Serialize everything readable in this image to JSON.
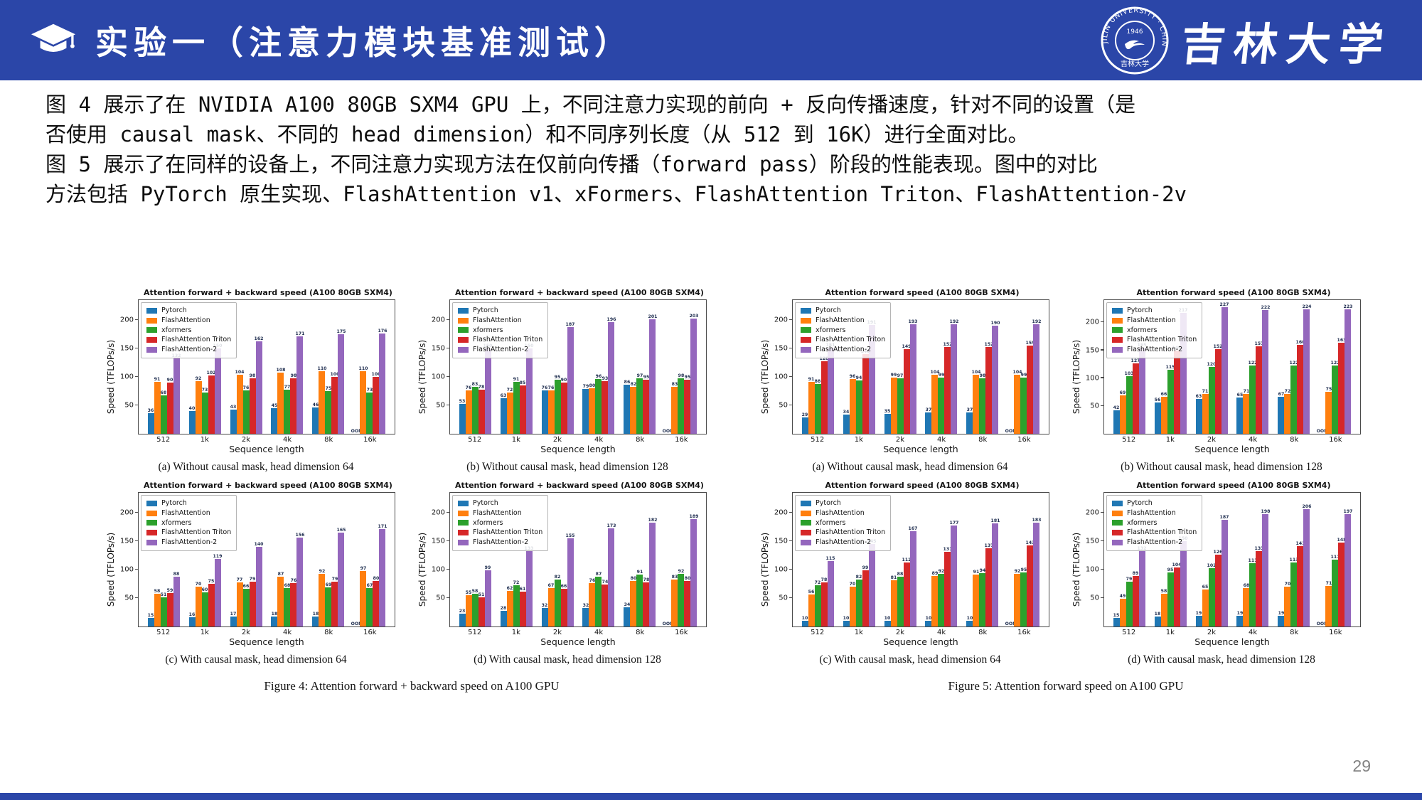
{
  "header": {
    "title": "实验一（注意力模块基准测试）",
    "seal_text": "JILIN UNIVERSITY · CHINA",
    "seal_year": "1946",
    "seal_bottom": "吉林大学",
    "logo_text": "吉林大学"
  },
  "intro": {
    "lines": [
      "图 4 展示了在 NVIDIA A100 80GB SXM4 GPU 上，不同注意力实现的前向 + 反向传播速度，针对不同的设置（是",
      "否使用 causal mask、不同的 head dimension）和不同序列长度（从 512 到 16K）进行全面对比。",
      "图 5 展示了在同样的设备上，不同注意力实现方法在仅前向传播（forward pass）阶段的性能表现。图中的对比",
      "方法包括 PyTorch 原生实现、FlashAttention v1、xFormers、FlashAttention Triton、FlashAttention-2v"
    ]
  },
  "figure4": {
    "caption": "Figure 4: Attention forward + backward speed on A100 GPU"
  },
  "figure5": {
    "caption": "Figure 5: Attention forward speed on A100 GPU"
  },
  "page_number": "29",
  "colors": {
    "header_blue": "#2b46a8",
    "pytorch": "#1f77b4",
    "flashattention": "#ff7f0e",
    "xformers": "#2ca02c",
    "flashattention_triton": "#d62728",
    "flashattention_2": "#9467bd"
  },
  "chart_data": [
    {
      "id": "fig4a",
      "type": "bar",
      "group": "figure4",
      "title": "Attention forward + backward speed (A100 80GB SXM4)",
      "caption": "(a) Without causal mask, head dimension 64",
      "xlabel": "Sequence length",
      "ylabel": "Speed (TFLOPs/s)",
      "categories": [
        "512",
        "1k",
        "2k",
        "4k",
        "8k",
        "16k"
      ],
      "yticks": [
        50,
        100,
        150,
        200
      ],
      "ylim": [
        0,
        235
      ],
      "legend_position": "top-left",
      "oom_label": "OOM",
      "series": [
        {
          "name": "Pytorch",
          "color": "#1f77b4",
          "values": [
            36,
            40,
            43,
            45,
            46,
            null
          ]
        },
        {
          "name": "FlashAttention",
          "color": "#ff7f0e",
          "values": [
            91,
            92,
            104,
            108,
            110,
            110
          ]
        },
        {
          "name": "xformers",
          "color": "#2ca02c",
          "values": [
            68,
            73,
            76,
            77,
            75,
            73
          ]
        },
        {
          "name": "FlashAttention Triton",
          "color": "#d62728",
          "values": [
            90,
            102,
            98,
            98,
            100,
            100
          ]
        },
        {
          "name": "FlashAttention-2",
          "color": "#9467bd",
          "values": [
            132,
            150,
            162,
            171,
            175,
            176
          ]
        }
      ]
    },
    {
      "id": "fig4b",
      "type": "bar",
      "group": "figure4",
      "title": "Attention forward + backward speed (A100 80GB SXM4)",
      "caption": "(b) Without causal mask, head dimension 128",
      "xlabel": "Sequence length",
      "ylabel": "Speed (TFLOPs/s)",
      "categories": [
        "512",
        "1k",
        "2k",
        "4k",
        "8k",
        "16k"
      ],
      "yticks": [
        50,
        100,
        150,
        200
      ],
      "ylim": [
        0,
        235
      ],
      "legend_position": "top-left",
      "oom_label": "OOM",
      "series": [
        {
          "name": "Pytorch",
          "color": "#1f77b4",
          "values": [
            53,
            63,
            76,
            79,
            86,
            null
          ]
        },
        {
          "name": "FlashAttention",
          "color": "#ff7f0e",
          "values": [
            76,
            72,
            76,
            80,
            82,
            83
          ]
        },
        {
          "name": "xformers",
          "color": "#2ca02c",
          "values": [
            83,
            91,
            95,
            96,
            97,
            98
          ]
        },
        {
          "name": "FlashAttention Triton",
          "color": "#d62728",
          "values": [
            78,
            85,
            90,
            93,
            95,
            95
          ]
        },
        {
          "name": "FlashAttention-2",
          "color": "#9467bd",
          "values": [
            150,
            150,
            187,
            196,
            201,
            203
          ]
        }
      ]
    },
    {
      "id": "fig4c",
      "type": "bar",
      "group": "figure4",
      "title": "Attention forward + backward speed (A100 80GB SXM4)",
      "caption": "(c) With causal mask, head dimension 64",
      "xlabel": "Sequence length",
      "ylabel": "Speed (TFLOPs/s)",
      "categories": [
        "512",
        "1k",
        "2k",
        "4k",
        "8k",
        "16k"
      ],
      "yticks": [
        50,
        100,
        150,
        200
      ],
      "ylim": [
        0,
        235
      ],
      "legend_position": "top-left",
      "oom_label": "OOM",
      "series": [
        {
          "name": "Pytorch",
          "color": "#1f77b4",
          "values": [
            15,
            16,
            17,
            18,
            18,
            null
          ]
        },
        {
          "name": "FlashAttention",
          "color": "#ff7f0e",
          "values": [
            58,
            70,
            77,
            87,
            92,
            97
          ]
        },
        {
          "name": "xformers",
          "color": "#2ca02c",
          "values": [
            51,
            60,
            66,
            68,
            69,
            67
          ]
        },
        {
          "name": "FlashAttention Triton",
          "color": "#d62728",
          "values": [
            59,
            75,
            79,
            76,
            79,
            80
          ]
        },
        {
          "name": "FlashAttention-2",
          "color": "#9467bd",
          "values": [
            88,
            119,
            140,
            156,
            165,
            171
          ]
        }
      ]
    },
    {
      "id": "fig4d",
      "type": "bar",
      "group": "figure4",
      "title": "Attention forward + backward speed (A100 80GB SXM4)",
      "caption": "(d) With causal mask, head dimension 128",
      "xlabel": "Sequence length",
      "ylabel": "Speed (TFLOPs/s)",
      "categories": [
        "512",
        "1k",
        "2k",
        "4k",
        "8k",
        "16k"
      ],
      "yticks": [
        50,
        100,
        150,
        200
      ],
      "ylim": [
        0,
        235
      ],
      "legend_position": "top-left",
      "oom_label": "OOM",
      "series": [
        {
          "name": "Pytorch",
          "color": "#1f77b4",
          "values": [
            23,
            28,
            32,
            32,
            34,
            null
          ]
        },
        {
          "name": "FlashAttention",
          "color": "#ff7f0e",
          "values": [
            55,
            62,
            67,
            76,
            80,
            83
          ]
        },
        {
          "name": "xformers",
          "color": "#2ca02c",
          "values": [
            58,
            72,
            82,
            87,
            91,
            92
          ]
        },
        {
          "name": "FlashAttention Triton",
          "color": "#d62728",
          "values": [
            51,
            61,
            66,
            74,
            78,
            80
          ]
        },
        {
          "name": "FlashAttention-2",
          "color": "#9467bd",
          "values": [
            99,
            133,
            155,
            173,
            182,
            189
          ]
        }
      ]
    },
    {
      "id": "fig5a",
      "type": "bar",
      "group": "figure5",
      "title": "Attention forward speed (A100 80GB SXM4)",
      "caption": "(a) Without causal mask, head dimension 64",
      "xlabel": "Sequence length",
      "ylabel": "Speed (TFLOPs/s)",
      "categories": [
        "512",
        "1k",
        "2k",
        "4k",
        "8k",
        "16k"
      ],
      "yticks": [
        50,
        100,
        150,
        200
      ],
      "ylim": [
        0,
        235
      ],
      "legend_position": "top-left",
      "oom_label": "OOM",
      "series": [
        {
          "name": "Pytorch",
          "color": "#1f77b4",
          "values": [
            29,
            34,
            35,
            37,
            37,
            null
          ]
        },
        {
          "name": "FlashAttention",
          "color": "#ff7f0e",
          "values": [
            91,
            96,
            99,
            104,
            104,
            104
          ]
        },
        {
          "name": "xformers",
          "color": "#2ca02c",
          "values": [
            88,
            94,
            97,
            99,
            98,
            99
          ]
        },
        {
          "name": "FlashAttention Triton",
          "color": "#d62728",
          "values": [
            128,
            140,
            149,
            152,
            152,
            155
          ]
        },
        {
          "name": "FlashAttention-2",
          "color": "#9467bd",
          "values": [
            151,
            191,
            193,
            192,
            190,
            192
          ]
        }
      ]
    },
    {
      "id": "fig5b",
      "type": "bar",
      "group": "figure5",
      "title": "Attention forward speed (A100 80GB SXM4)",
      "caption": "(b) Without causal mask, head dimension 128",
      "xlabel": "Sequence length",
      "ylabel": "Speed (TFLOPs/s)",
      "categories": [
        "512",
        "1k",
        "2k",
        "4k",
        "8k",
        "16k"
      ],
      "yticks": [
        50,
        100,
        150,
        200
      ],
      "ylim": [
        0,
        240
      ],
      "legend_position": "top-left",
      "oom_label": "OOM",
      "series": [
        {
          "name": "Pytorch",
          "color": "#1f77b4",
          "values": [
            42,
            56,
            63,
            65,
            67,
            null
          ]
        },
        {
          "name": "FlashAttention",
          "color": "#ff7f0e",
          "values": [
            69,
            66,
            71,
            71,
            72,
            75
          ]
        },
        {
          "name": "xformers",
          "color": "#2ca02c",
          "values": [
            103,
            115,
            120,
            122,
            122,
            122
          ]
        },
        {
          "name": "FlashAttention Triton",
          "color": "#d62728",
          "values": [
            127,
            149,
            152,
            157,
            160,
            163
          ]
        },
        {
          "name": "FlashAttention-2",
          "color": "#9467bd",
          "values": [
            155,
            217,
            227,
            222,
            224,
            223
          ]
        }
      ]
    },
    {
      "id": "fig5c",
      "type": "bar",
      "group": "figure5",
      "title": "Attention forward speed (A100 80GB SXM4)",
      "caption": "(c) With causal mask, head dimension 64",
      "xlabel": "Sequence length",
      "ylabel": "Speed (TFLOPs/s)",
      "categories": [
        "512",
        "1k",
        "2k",
        "4k",
        "8k",
        "16k"
      ],
      "yticks": [
        50,
        100,
        150,
        200
      ],
      "ylim": [
        0,
        235
      ],
      "legend_position": "top-left",
      "oom_label": "OOM",
      "series": [
        {
          "name": "Pytorch",
          "color": "#1f77b4",
          "values": [
            10,
            10,
            10,
            10,
            10,
            null
          ]
        },
        {
          "name": "FlashAttention",
          "color": "#ff7f0e",
          "values": [
            56,
            70,
            81,
            89,
            91,
            92
          ]
        },
        {
          "name": "xformers",
          "color": "#2ca02c",
          "values": [
            72,
            82,
            88,
            92,
            94,
            95
          ]
        },
        {
          "name": "FlashAttention Triton",
          "color": "#d62728",
          "values": [
            78,
            99,
            112,
            131,
            137,
            143
          ]
        },
        {
          "name": "FlashAttention-2",
          "color": "#9467bd",
          "values": [
            115,
            145,
            167,
            177,
            181,
            183
          ]
        }
      ]
    },
    {
      "id": "fig5d",
      "type": "bar",
      "group": "figure5",
      "title": "Attention forward speed (A100 80GB SXM4)",
      "caption": "(d) With causal mask, head dimension 128",
      "xlabel": "Sequence length",
      "ylabel": "Speed (TFLOPs/s)",
      "categories": [
        "512",
        "1k",
        "2k",
        "4k",
        "8k",
        "16k"
      ],
      "yticks": [
        50,
        100,
        150,
        200
      ],
      "ylim": [
        0,
        235
      ],
      "legend_position": "top-left",
      "oom_label": "OOM",
      "series": [
        {
          "name": "Pytorch",
          "color": "#1f77b4",
          "values": [
            15,
            18,
            19,
            19,
            19,
            null
          ]
        },
        {
          "name": "FlashAttention",
          "color": "#ff7f0e",
          "values": [
            49,
            58,
            65,
            68,
            70,
            71
          ]
        },
        {
          "name": "xformers",
          "color": "#2ca02c",
          "values": [
            79,
            95,
            102,
            111,
            113,
            117
          ]
        },
        {
          "name": "FlashAttention Triton",
          "color": "#d62728",
          "values": [
            89,
            104,
            126,
            133,
            141,
            148
          ]
        },
        {
          "name": "FlashAttention-2",
          "color": "#9467bd",
          "values": [
            132,
            150,
            187,
            198,
            206,
            197
          ]
        }
      ]
    }
  ]
}
